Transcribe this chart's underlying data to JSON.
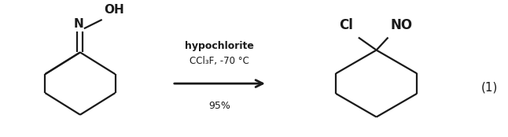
{
  "background_color": "#ffffff",
  "text_color": "#1a1a1a",
  "title": "(1)",
  "reagent_line1": "hypochlorite",
  "reagent_line2": "CCl₃F, -70 °C",
  "yield_text": "95%",
  "figsize": [
    6.46,
    1.74
  ],
  "dpi": 100,
  "lw": 1.6
}
